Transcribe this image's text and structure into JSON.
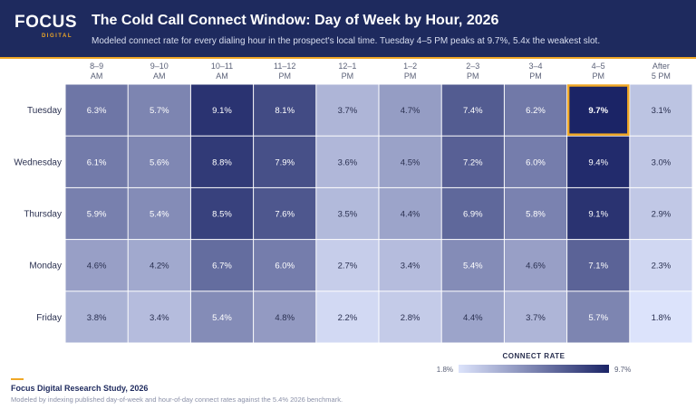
{
  "header": {
    "logo_word": "FOCUS",
    "logo_sub": "DIGITAL",
    "title": "The Cold Call Connect Window: Day of Week by Hour, 2026",
    "subtitle": "Modeled connect rate for every dialing hour in the prospect's local time. Tuesday 4–5 PM peaks at 9.7%, 5.4x the weakest slot."
  },
  "chart_data": {
    "type": "heatmap",
    "x_categories": [
      [
        "8–9",
        "AM"
      ],
      [
        "9–10",
        "AM"
      ],
      [
        "10–11",
        "AM"
      ],
      [
        "11–12",
        "PM"
      ],
      [
        "12–1",
        "PM"
      ],
      [
        "1–2",
        "PM"
      ],
      [
        "2–3",
        "PM"
      ],
      [
        "3–4",
        "PM"
      ],
      [
        "4–5",
        "PM"
      ],
      [
        "After",
        "5 PM"
      ]
    ],
    "y_categories": [
      "Tuesday",
      "Wednesday",
      "Thursday",
      "Monday",
      "Friday"
    ],
    "values": [
      [
        6.3,
        5.7,
        9.1,
        8.1,
        3.7,
        4.7,
        7.4,
        6.2,
        9.7,
        3.1
      ],
      [
        6.1,
        5.6,
        8.8,
        7.9,
        3.6,
        4.5,
        7.2,
        6.0,
        9.4,
        3.0
      ],
      [
        5.9,
        5.4,
        8.5,
        7.6,
        3.5,
        4.4,
        6.9,
        5.8,
        9.1,
        2.9
      ],
      [
        4.6,
        4.2,
        6.7,
        6.0,
        2.7,
        3.4,
        5.4,
        4.6,
        7.1,
        2.3
      ],
      [
        3.8,
        3.4,
        5.4,
        4.8,
        2.2,
        2.8,
        4.4,
        3.7,
        5.7,
        1.8
      ]
    ],
    "value_suffix": "%",
    "highlight": {
      "row": 0,
      "col": 8
    },
    "highlight_color": "#f0a826",
    "color_scale": {
      "min": 1.8,
      "max": 9.7,
      "min_color": "#dce3fb",
      "max_color": "#1b2466"
    },
    "legend": {
      "title": "CONNECT RATE",
      "min_label": "1.8%",
      "max_label": "9.7%"
    }
  },
  "footer": {
    "source": "Focus Digital Research Study, 2026",
    "note": "Modeled by indexing published day-of-week and hour-of-day connect rates against the 5.4% 2026 benchmark."
  }
}
